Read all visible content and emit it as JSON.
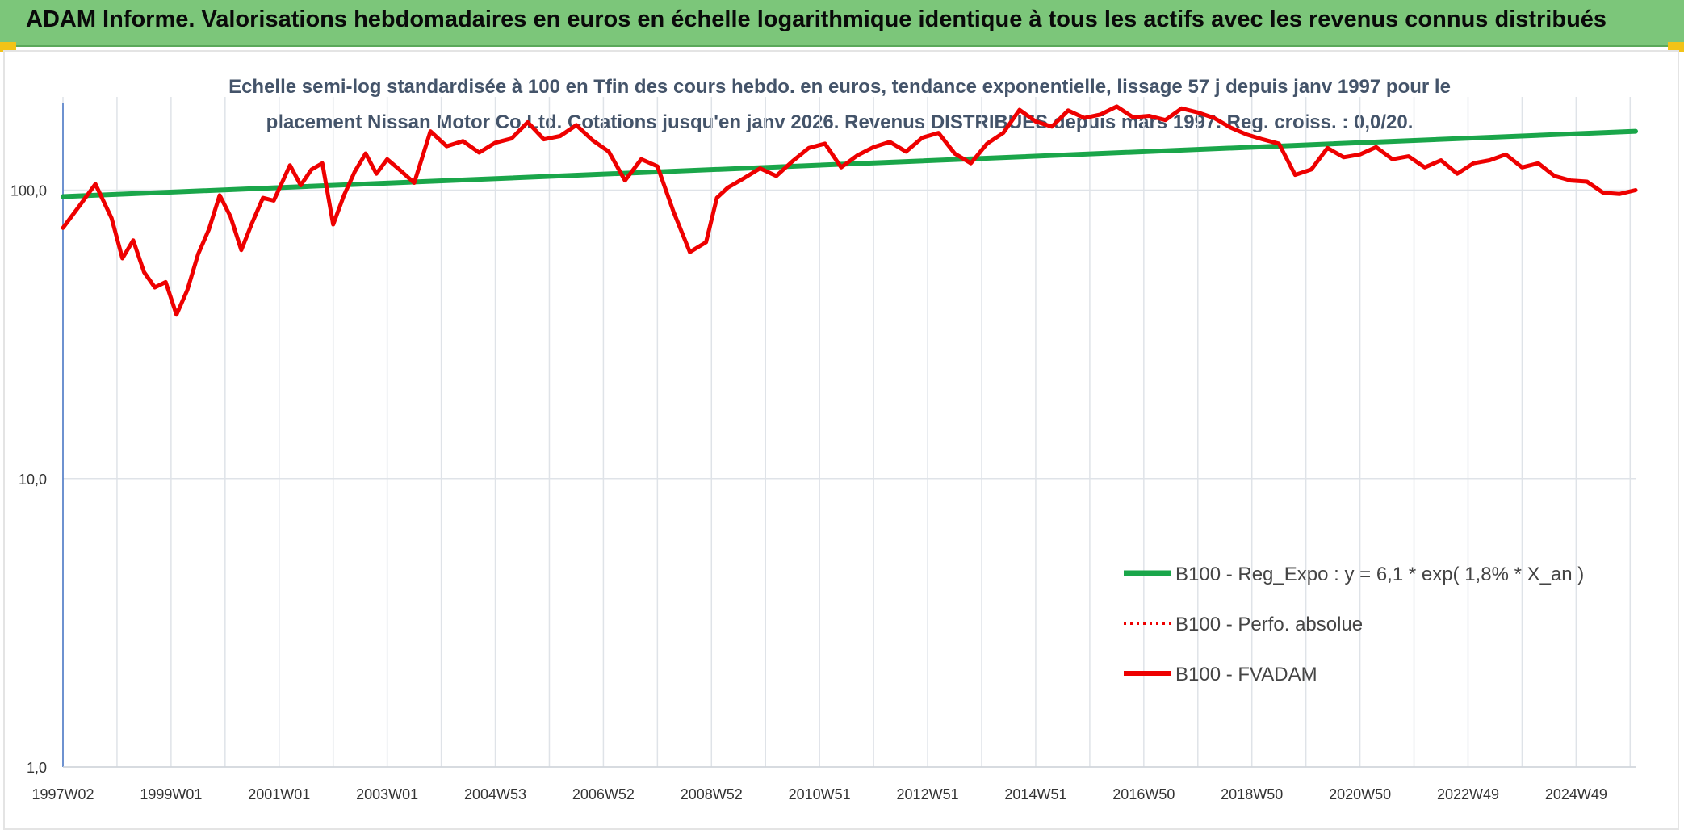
{
  "banner": {
    "title": "ADAM Informe. Valorisations hebdomadaires en euros en échelle logarithmique identique à tous les actifs avec les revenus connus distribués"
  },
  "colors": {
    "banner_bg": "#7cc67a",
    "corner_accent": "#f2c318",
    "regression": "#1aa64a",
    "fvadam": "#ee0000",
    "perf_absolue": "#ee0000",
    "grid": "#dfe3e8",
    "y_axis": "#4472c4"
  },
  "chart_data": {
    "type": "line",
    "title": "Echelle semi-log standardisée à 100 en Tfin des cours hebdo. en euros, tendance exponentielle, lissage 57 j depuis janv 1997 pour le placement Nissan Motor Co Ltd. Cotations jusqu'en janv 2026. Revenus DISTRIBUES depuis mars 1997. Reg. croiss. : 0,0/20.",
    "y_scale": "log",
    "ylim": [
      1,
      200
    ],
    "y_ticks": [
      {
        "value": 1,
        "label": "1,0"
      },
      {
        "value": 10,
        "label": "10,0"
      },
      {
        "value": 100,
        "label": "100,0"
      }
    ],
    "xlim": [
      1997.0,
      2026.1
    ],
    "x_tick_labels": [
      {
        "x": 1997.0,
        "label": "1997W02"
      },
      {
        "x": 1999.0,
        "label": "1999W01"
      },
      {
        "x": 2001.0,
        "label": "2001W01"
      },
      {
        "x": 2003.0,
        "label": "2003W01"
      },
      {
        "x": 2005.0,
        "label": "2004W53"
      },
      {
        "x": 2007.0,
        "label": "2006W52"
      },
      {
        "x": 2009.0,
        "label": "2008W52"
      },
      {
        "x": 2011.0,
        "label": "2010W51"
      },
      {
        "x": 2013.0,
        "label": "2012W51"
      },
      {
        "x": 2015.0,
        "label": "2014W51"
      },
      {
        "x": 2017.0,
        "label": "2016W50"
      },
      {
        "x": 2019.0,
        "label": "2018W50"
      },
      {
        "x": 2021.0,
        "label": "2020W50"
      },
      {
        "x": 2023.0,
        "label": "2022W49"
      },
      {
        "x": 2025.0,
        "label": "2024W49"
      }
    ],
    "gridlines": true,
    "legend_position": "right, lower half",
    "series": [
      {
        "name": "B100 - Reg_Expo : y = 6,1 * exp( 1,8% *  X_an )",
        "style": "solid",
        "x": [
          1997.0,
          2026.1
        ],
        "y": [
          95,
          160
        ]
      },
      {
        "name": "B100 - Perfo. absolue",
        "style": "dotted",
        "x": [],
        "y": []
      },
      {
        "name": "B100 - FVADAM",
        "style": "solid",
        "x": [
          1997.0,
          1997.3,
          1997.6,
          1997.9,
          1998.1,
          1998.3,
          1998.5,
          1998.7,
          1998.9,
          1999.1,
          1999.3,
          1999.5,
          1999.7,
          1999.9,
          2000.1,
          2000.3,
          2000.5,
          2000.7,
          2000.9,
          2001.2,
          2001.4,
          2001.6,
          2001.8,
          2002.0,
          2002.2,
          2002.4,
          2002.6,
          2002.8,
          2003.0,
          2003.2,
          2003.5,
          2003.8,
          2004.1,
          2004.4,
          2004.7,
          2005.0,
          2005.3,
          2005.6,
          2005.9,
          2006.2,
          2006.5,
          2006.8,
          2007.1,
          2007.4,
          2007.7,
          2008.0,
          2008.3,
          2008.6,
          2008.9,
          2009.1,
          2009.3,
          2009.6,
          2009.9,
          2010.2,
          2010.5,
          2010.8,
          2011.1,
          2011.4,
          2011.7,
          2012.0,
          2012.3,
          2012.6,
          2012.9,
          2013.2,
          2013.5,
          2013.8,
          2014.1,
          2014.4,
          2014.7,
          2015.0,
          2015.3,
          2015.6,
          2015.9,
          2016.2,
          2016.5,
          2016.8,
          2017.1,
          2017.4,
          2017.7,
          2018.0,
          2018.3,
          2018.6,
          2018.9,
          2019.2,
          2019.5,
          2019.8,
          2020.1,
          2020.4,
          2020.7,
          2021.0,
          2021.3,
          2021.6,
          2021.9,
          2022.2,
          2022.5,
          2022.8,
          2023.1,
          2023.4,
          2023.7,
          2024.0,
          2024.3,
          2024.6,
          2024.9,
          2025.2,
          2025.5,
          2025.8,
          2026.1
        ],
        "y": [
          74,
          88,
          105,
          80,
          58,
          67,
          52,
          46,
          48,
          37,
          45,
          60,
          73,
          96,
          81,
          62,
          77,
          94,
          92,
          122,
          104,
          118,
          124,
          76,
          96,
          116,
          134,
          114,
          128,
          119,
          106,
          160,
          142,
          148,
          135,
          146,
          151,
          172,
          150,
          154,
          168,
          149,
          136,
          108,
          128,
          121,
          84,
          61,
          66,
          94,
          102,
          110,
          119,
          112,
          126,
          140,
          145,
          120,
          132,
          141,
          147,
          136,
          152,
          158,
          134,
          124,
          145,
          158,
          190,
          173,
          166,
          189,
          178,
          183,
          195,
          179,
          181,
          175,
          192,
          186,
          178,
          165,
          156,
          150,
          145,
          113,
          118,
          140,
          130,
          133,
          141,
          128,
          131,
          120,
          127,
          114,
          124,
          127,
          133,
          120,
          124,
          112,
          108,
          107,
          98,
          97,
          100
        ]
      }
    ]
  }
}
